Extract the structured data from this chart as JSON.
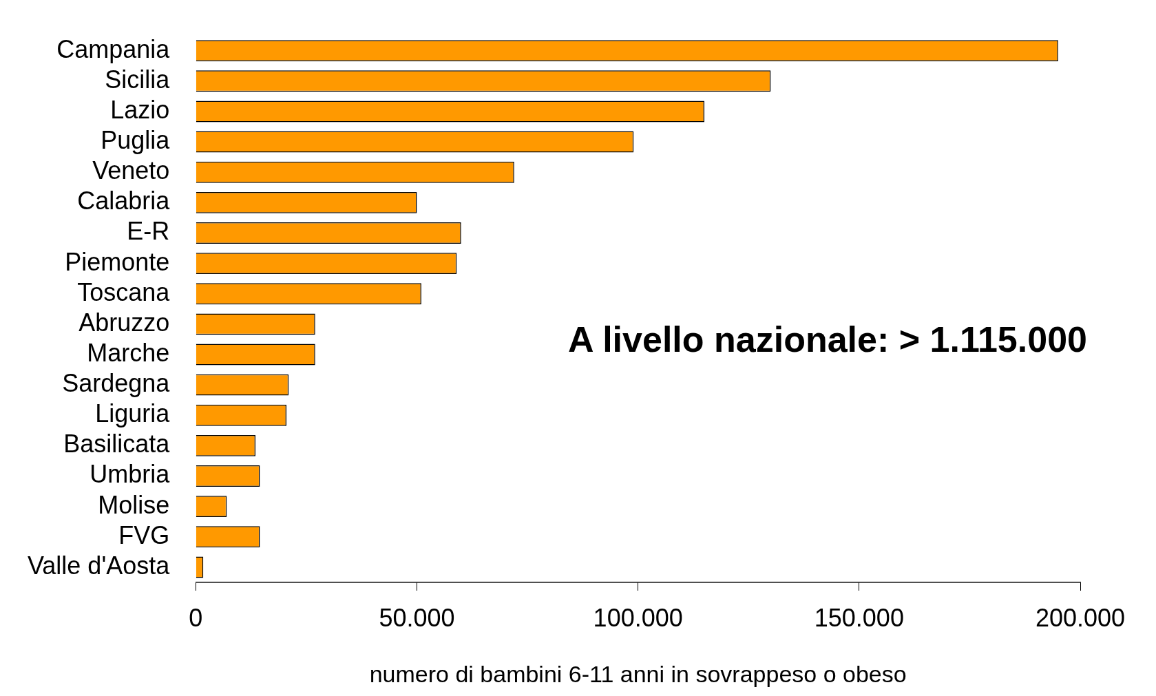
{
  "chart_data": {
    "type": "bar",
    "orientation": "horizontal",
    "xlabel": "numero di bambini 6-11 anni in sovrappeso o obeso",
    "categories": [
      "Campania",
      "Sicilia",
      "Lazio",
      "Puglia",
      "Veneto",
      "Calabria",
      "E-R",
      "Piemonte",
      "Toscana",
      "Abruzzo",
      "Marche",
      "Sardegna",
      "Liguria",
      "Basilicata",
      "Umbria",
      "Molise",
      "FVG",
      "Valle d'Aosta"
    ],
    "values": [
      195000,
      130000,
      115000,
      99000,
      72000,
      50000,
      60000,
      59000,
      51000,
      27000,
      27000,
      21000,
      20500,
      13500,
      14500,
      7000,
      14500,
      1700
    ],
    "color": "#ff9900",
    "xlim": [
      0,
      200000
    ],
    "xticks": [
      0,
      {
        "value": 50000,
        "label": "50.000"
      },
      {
        "value": 100000,
        "label": "100.000"
      },
      {
        "value": 150000,
        "label": "150.000"
      },
      {
        "value": 200000,
        "label": "200.000"
      }
    ],
    "annotations": [
      "A livello nazionale: > 1.115.000"
    ],
    "legend": false
  }
}
